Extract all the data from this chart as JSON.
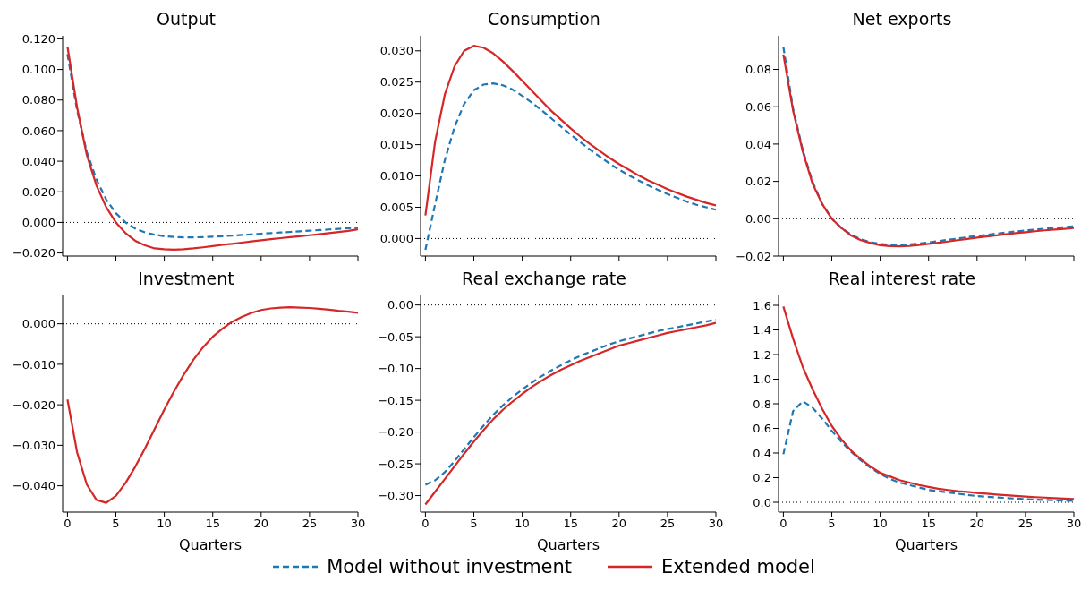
{
  "chart_data": [
    {
      "type": "line",
      "title": "Output",
      "x": [
        0,
        1,
        2,
        3,
        4,
        5,
        6,
        7,
        8,
        9,
        10,
        11,
        12,
        13,
        14,
        15,
        16,
        17,
        18,
        19,
        20,
        21,
        22,
        23,
        24,
        25,
        26,
        27,
        28,
        29,
        30
      ],
      "xlim": [
        -0.5,
        30
      ],
      "xticks": [
        0,
        5,
        10,
        15,
        20,
        25,
        30
      ],
      "ylim": [
        -0.022,
        0.122
      ],
      "yticks": [
        {
          "value": -0.02,
          "label": "−0.020"
        },
        {
          "value": 0,
          "label": "0.000"
        },
        {
          "value": 0.02,
          "label": "0.020"
        },
        {
          "value": 0.04,
          "label": "0.040"
        },
        {
          "value": 0.06,
          "label": "0.060"
        },
        {
          "value": 0.08,
          "label": "0.080"
        },
        {
          "value": 0.1,
          "label": "0.100"
        },
        {
          "value": 0.12,
          "label": "0.120"
        }
      ],
      "tick_labels": "y",
      "legend": "bottom",
      "grid": false,
      "ref_lines": [
        {
          "axis": "y",
          "value": 0,
          "color": "#000000",
          "line_style": "dotted"
        }
      ],
      "series": [
        {
          "name": "Model without investment",
          "color": "#1f77b4",
          "line_style": "dashed",
          "values": [
            0.11,
            0.073,
            0.046,
            0.028,
            0.015,
            0.006,
            0.0,
            -0.004,
            -0.0065,
            -0.008,
            -0.009,
            -0.0095,
            -0.0098,
            -0.0098,
            -0.0096,
            -0.0093,
            -0.009,
            -0.0086,
            -0.0082,
            -0.0078,
            -0.0074,
            -0.007,
            -0.0066,
            -0.0062,
            -0.0058,
            -0.0054,
            -0.005,
            -0.0046,
            -0.0042,
            -0.0038,
            -0.0035
          ]
        },
        {
          "name": "Extended model",
          "color": "#d62728",
          "line_style": "solid",
          "values": [
            0.115,
            0.075,
            0.044,
            0.024,
            0.01,
            0.0,
            -0.007,
            -0.012,
            -0.015,
            -0.017,
            -0.0175,
            -0.0178,
            -0.0175,
            -0.017,
            -0.0163,
            -0.0155,
            -0.0147,
            -0.014,
            -0.0132,
            -0.0124,
            -0.0117,
            -0.011,
            -0.0103,
            -0.0096,
            -0.009,
            -0.0084,
            -0.0077,
            -0.007,
            -0.0063,
            -0.0055,
            -0.0045
          ]
        }
      ]
    },
    {
      "type": "line",
      "title": "Consumption",
      "x": [
        0,
        1,
        2,
        3,
        4,
        5,
        6,
        7,
        8,
        9,
        10,
        11,
        12,
        13,
        14,
        15,
        16,
        17,
        18,
        19,
        20,
        21,
        22,
        23,
        24,
        25,
        26,
        27,
        28,
        29,
        30
      ],
      "xlim": [
        -0.5,
        30
      ],
      "xticks": [
        0,
        5,
        10,
        15,
        20,
        25,
        30
      ],
      "ylim": [
        -0.0028,
        0.0324
      ],
      "yticks": [
        {
          "value": 0,
          "label": "0.000"
        },
        {
          "value": 0.005,
          "label": "0.005"
        },
        {
          "value": 0.01,
          "label": "0.010"
        },
        {
          "value": 0.015,
          "label": "0.015"
        },
        {
          "value": 0.02,
          "label": "0.020"
        },
        {
          "value": 0.025,
          "label": "0.025"
        },
        {
          "value": 0.03,
          "label": "0.030"
        }
      ],
      "tick_labels": "y",
      "legend": "bottom",
      "grid": false,
      "ref_lines": [
        {
          "axis": "y",
          "value": 0,
          "color": "#000000",
          "line_style": "dotted"
        }
      ],
      "series": [
        {
          "name": "Model without investment",
          "color": "#1f77b4",
          "line_style": "dashed",
          "values": [
            -0.0018,
            0.0055,
            0.0125,
            0.0178,
            0.0215,
            0.0237,
            0.0246,
            0.0248,
            0.0245,
            0.0238,
            0.0228,
            0.0217,
            0.0205,
            0.0192,
            0.0179,
            0.0166,
            0.0154,
            0.0142,
            0.0131,
            0.012,
            0.011,
            0.0101,
            0.0093,
            0.0085,
            0.0078,
            0.0071,
            0.0065,
            0.0059,
            0.0054,
            0.005,
            0.0046
          ]
        },
        {
          "name": "Extended model",
          "color": "#d62728",
          "line_style": "solid",
          "values": [
            0.0037,
            0.0155,
            0.023,
            0.0275,
            0.03,
            0.0308,
            0.0305,
            0.0296,
            0.0283,
            0.0268,
            0.0252,
            0.0236,
            0.022,
            0.0204,
            0.019,
            0.0176,
            0.0163,
            0.0151,
            0.014,
            0.0129,
            0.0119,
            0.011,
            0.0101,
            0.0093,
            0.0086,
            0.0079,
            0.0073,
            0.0067,
            0.0062,
            0.0057,
            0.0053
          ]
        }
      ]
    },
    {
      "type": "line",
      "title": "Net exports",
      "x": [
        0,
        1,
        2,
        3,
        4,
        5,
        6,
        7,
        8,
        9,
        10,
        11,
        12,
        13,
        14,
        15,
        16,
        17,
        18,
        19,
        20,
        21,
        22,
        23,
        24,
        25,
        26,
        27,
        28,
        29,
        30
      ],
      "xlim": [
        -0.5,
        30
      ],
      "xticks": [
        0,
        5,
        10,
        15,
        20,
        25,
        30
      ],
      "ylim": [
        -0.02,
        0.098
      ],
      "yticks": [
        {
          "value": -0.02,
          "label": "−0.02"
        },
        {
          "value": 0,
          "label": "0.00"
        },
        {
          "value": 0.02,
          "label": "0.02"
        },
        {
          "value": 0.04,
          "label": "0.04"
        },
        {
          "value": 0.06,
          "label": "0.06"
        },
        {
          "value": 0.08,
          "label": "0.08"
        }
      ],
      "tick_labels": "y",
      "legend": "bottom",
      "grid": false,
      "ref_lines": [
        {
          "axis": "y",
          "value": 0,
          "color": "#000000",
          "line_style": "dotted"
        }
      ],
      "series": [
        {
          "name": "Model without investment",
          "color": "#1f77b4",
          "line_style": "dashed",
          "values": [
            0.092,
            0.059,
            0.037,
            0.02,
            0.008,
            0.0,
            -0.005,
            -0.0085,
            -0.011,
            -0.0125,
            -0.0135,
            -0.014,
            -0.014,
            -0.0138,
            -0.0133,
            -0.0127,
            -0.012,
            -0.0113,
            -0.0106,
            -0.0099,
            -0.0092,
            -0.0086,
            -0.008,
            -0.0074,
            -0.0068,
            -0.0063,
            -0.0058,
            -0.0053,
            -0.0049,
            -0.0045,
            -0.0041
          ]
        },
        {
          "name": "Extended model",
          "color": "#d62728",
          "line_style": "solid",
          "values": [
            0.088,
            0.058,
            0.036,
            0.019,
            0.008,
            0.0,
            -0.005,
            -0.009,
            -0.0115,
            -0.013,
            -0.0142,
            -0.0147,
            -0.0148,
            -0.0146,
            -0.0141,
            -0.0135,
            -0.0129,
            -0.0122,
            -0.0115,
            -0.0108,
            -0.0101,
            -0.0095,
            -0.0089,
            -0.0083,
            -0.0077,
            -0.0072,
            -0.0067,
            -0.0062,
            -0.0058,
            -0.0054,
            -0.005
          ]
        }
      ]
    },
    {
      "type": "line",
      "title": "Investment",
      "xlabel": "Quarters",
      "x": [
        0,
        1,
        2,
        3,
        4,
        5,
        6,
        7,
        8,
        9,
        10,
        11,
        12,
        13,
        14,
        15,
        16,
        17,
        18,
        19,
        20,
        21,
        22,
        23,
        24,
        25,
        26,
        27,
        28,
        29,
        30
      ],
      "xlim": [
        -0.5,
        30
      ],
      "xticks": [
        0,
        5,
        10,
        15,
        20,
        25,
        30
      ],
      "ylim": [
        -0.0465,
        0.007
      ],
      "yticks": [
        {
          "value": -0.04,
          "label": "−0.040"
        },
        {
          "value": -0.03,
          "label": "−0.030"
        },
        {
          "value": -0.02,
          "label": "−0.020"
        },
        {
          "value": -0.01,
          "label": "−0.010"
        },
        {
          "value": 0,
          "label": "0.000"
        }
      ],
      "legend": "bottom",
      "grid": false,
      "ref_lines": [
        {
          "axis": "y",
          "value": 0,
          "color": "#000000",
          "line_style": "dotted"
        }
      ],
      "series": [
        {
          "name": "Extended model",
          "color": "#d62728",
          "line_style": "solid",
          "values": [
            -0.0187,
            -0.0318,
            -0.0397,
            -0.0435,
            -0.0442,
            -0.0425,
            -0.0393,
            -0.0353,
            -0.0308,
            -0.026,
            -0.0212,
            -0.0167,
            -0.0126,
            -0.0089,
            -0.0058,
            -0.0032,
            -0.0012,
            0.0005,
            0.0017,
            0.0027,
            0.0034,
            0.0038,
            0.004,
            0.0041,
            0.004,
            0.0039,
            0.0037,
            0.0035,
            0.0032,
            0.003,
            0.0027
          ]
        }
      ]
    },
    {
      "type": "line",
      "title": "Real exchange rate",
      "xlabel": "Quarters",
      "x": [
        0,
        1,
        2,
        3,
        4,
        5,
        6,
        7,
        8,
        9,
        10,
        11,
        12,
        13,
        14,
        15,
        16,
        17,
        18,
        19,
        20,
        21,
        22,
        23,
        24,
        25,
        26,
        27,
        28,
        29,
        30
      ],
      "xlim": [
        -0.5,
        30
      ],
      "xticks": [
        0,
        5,
        10,
        15,
        20,
        25,
        30
      ],
      "ylim": [
        -0.326,
        0.015
      ],
      "yticks": [
        {
          "value": -0.3,
          "label": "−0.30"
        },
        {
          "value": -0.25,
          "label": "−0.25"
        },
        {
          "value": -0.2,
          "label": "−0.20"
        },
        {
          "value": -0.15,
          "label": "−0.15"
        },
        {
          "value": -0.1,
          "label": "−0.10"
        },
        {
          "value": -0.05,
          "label": "−0.05"
        },
        {
          "value": 0,
          "label": "0.00"
        }
      ],
      "legend": "bottom",
      "grid": false,
      "ref_lines": [
        {
          "axis": "y",
          "value": 0,
          "color": "#000000",
          "line_style": "dotted"
        }
      ],
      "series": [
        {
          "name": "Model without investment",
          "color": "#1f77b4",
          "line_style": "dashed",
          "values": [
            -0.283,
            -0.276,
            -0.263,
            -0.246,
            -0.227,
            -0.208,
            -0.19,
            -0.173,
            -0.158,
            -0.145,
            -0.133,
            -0.122,
            -0.112,
            -0.103,
            -0.095,
            -0.087,
            -0.08,
            -0.074,
            -0.068,
            -0.062,
            -0.057,
            -0.053,
            -0.049,
            -0.045,
            -0.041,
            -0.038,
            -0.035,
            -0.032,
            -0.029,
            -0.026,
            -0.023
          ]
        },
        {
          "name": "Extended model",
          "color": "#d62728",
          "line_style": "solid",
          "values": [
            -0.314,
            -0.294,
            -0.274,
            -0.254,
            -0.234,
            -0.215,
            -0.197,
            -0.18,
            -0.165,
            -0.152,
            -0.14,
            -0.129,
            -0.119,
            -0.11,
            -0.102,
            -0.095,
            -0.088,
            -0.082,
            -0.076,
            -0.07,
            -0.064,
            -0.06,
            -0.056,
            -0.052,
            -0.048,
            -0.044,
            -0.041,
            -0.038,
            -0.035,
            -0.032,
            -0.028
          ]
        }
      ]
    },
    {
      "type": "line",
      "title": "Real interest rate",
      "xlabel": "Quarters",
      "x": [
        0,
        1,
        2,
        3,
        4,
        5,
        6,
        7,
        8,
        9,
        10,
        11,
        12,
        13,
        14,
        15,
        16,
        17,
        18,
        19,
        20,
        21,
        22,
        23,
        24,
        25,
        26,
        27,
        28,
        29,
        30
      ],
      "xlim": [
        -0.5,
        30
      ],
      "xticks": [
        0,
        5,
        10,
        15,
        20,
        25,
        30
      ],
      "ylim": [
        -0.08,
        1.68
      ],
      "yticks": [
        {
          "value": 0,
          "label": "0.0"
        },
        {
          "value": 0.2,
          "label": "0.2"
        },
        {
          "value": 0.4,
          "label": "0.4"
        },
        {
          "value": 0.6,
          "label": "0.6"
        },
        {
          "value": 0.8,
          "label": "0.8"
        },
        {
          "value": 1,
          "label": "1.0"
        },
        {
          "value": 1.2,
          "label": "1.2"
        },
        {
          "value": 1.4,
          "label": "1.4"
        },
        {
          "value": 1.6,
          "label": "1.6"
        }
      ],
      "legend": "bottom",
      "grid": false,
      "ref_lines": [
        {
          "axis": "y",
          "value": 0,
          "color": "#000000",
          "line_style": "dotted"
        }
      ],
      "series": [
        {
          "name": "Model without investment",
          "color": "#1f77b4",
          "line_style": "dashed",
          "values": [
            0.39,
            0.74,
            0.82,
            0.77,
            0.68,
            0.58,
            0.49,
            0.41,
            0.34,
            0.28,
            0.23,
            0.19,
            0.16,
            0.14,
            0.12,
            0.1,
            0.09,
            0.08,
            0.07,
            0.06,
            0.05,
            0.045,
            0.04,
            0.035,
            0.03,
            0.026,
            0.022,
            0.019,
            0.016,
            0.014,
            0.012
          ]
        },
        {
          "name": "Extended model",
          "color": "#d62728",
          "line_style": "solid",
          "values": [
            1.59,
            1.33,
            1.1,
            0.92,
            0.76,
            0.62,
            0.51,
            0.42,
            0.35,
            0.29,
            0.24,
            0.21,
            0.18,
            0.16,
            0.14,
            0.125,
            0.11,
            0.1,
            0.09,
            0.085,
            0.075,
            0.07,
            0.063,
            0.057,
            0.052,
            0.047,
            0.042,
            0.038,
            0.034,
            0.03,
            0.027
          ]
        }
      ]
    }
  ]
}
